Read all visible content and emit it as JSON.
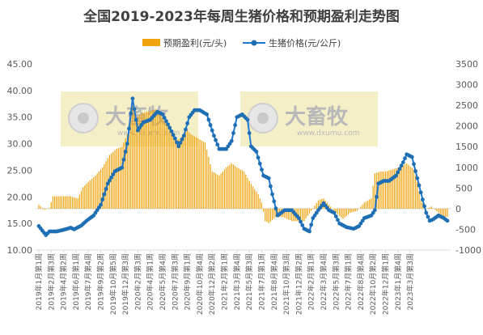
{
  "title": "全国2019-2023年每周生猪价格和预期盈利走势图",
  "watermark": {
    "brand": "大畜牧",
    "url": "www.dxumu.com"
  },
  "colors": {
    "bar": "#F0A30A",
    "line": "#1F77D4",
    "marker": "#1F6FB5",
    "watermark_box": "#F5EFC8",
    "axis": "#D9D9D9",
    "text": "#595959"
  },
  "chart_data": {
    "type": "bar+line",
    "title": "全国2019-2023年每周生猪价格和预期盈利走势图",
    "legend": {
      "position": "top",
      "items": [
        {
          "name": "预期盈利(元/头)",
          "type": "bar"
        },
        {
          "name": "生猪价格(元/公斤)",
          "type": "line"
        }
      ]
    },
    "y_left": {
      "min": 10,
      "max": 45,
      "step": 5,
      "ticks": [
        "10.00",
        "15.00",
        "20.00",
        "25.00",
        "30.00",
        "35.00",
        "40.00",
        "45.00"
      ]
    },
    "y_right": {
      "min": -1000,
      "max": 3500,
      "step": 500,
      "ticks": [
        "-1000",
        "-500",
        "0",
        "500",
        "1000",
        "1500",
        "2000",
        "2500",
        "3000",
        "3500"
      ]
    },
    "grid": false,
    "x_tick_labels": [
      "2019年1月第1周",
      "2019年2月第3周",
      "2019年4月第2周",
      "2019年6月第1周",
      "2019年7月第4周",
      "2019年9月第2周",
      "2019年10月第5周",
      "2019年12月第3周",
      "2020年2月第3周",
      "2020年4月第1周",
      "2020年5月第4周",
      "2020年7月第3周",
      "2020年9月第1周",
      "2020年10月第4周",
      "2020年12月第2周",
      "2021年2月第1周",
      "2021年3月第4周",
      "2021年5月第3周",
      "2021年7月第1周",
      "2021年8月第4周",
      "2021年10月第3周",
      "2021年12月第2周",
      "2022年2月第1周",
      "2022年3月第4周",
      "2022年5月第3周",
      "2022年7月第1周",
      "2022年8月第4周",
      "2022年10月第2周",
      "2022年12月第1周",
      "2023年1月第4周",
      "2023年3月第3周"
    ],
    "weeks_per_tick": 7,
    "series": [
      {
        "name": "生猪价格(元/公斤)",
        "axis": "left",
        "anchors": [
          [
            0,
            14.5
          ],
          [
            4,
            12.8
          ],
          [
            6,
            13.5
          ],
          [
            10,
            13.5
          ],
          [
            14,
            13.8
          ],
          [
            18,
            14.2
          ],
          [
            20,
            13.9
          ],
          [
            24,
            14.6
          ],
          [
            27,
            15.5
          ],
          [
            31,
            16.5
          ],
          [
            35,
            18.5
          ],
          [
            39,
            22.5
          ],
          [
            43,
            24.8
          ],
          [
            47,
            25.5
          ],
          [
            50,
            30.0
          ],
          [
            53,
            38.5
          ],
          [
            54,
            36.5
          ],
          [
            56,
            32.5
          ],
          [
            59,
            34.0
          ],
          [
            63,
            34.5
          ],
          [
            67,
            36.0
          ],
          [
            70,
            35.5
          ],
          [
            74,
            33.0
          ],
          [
            77,
            31.0
          ],
          [
            79,
            29.5
          ],
          [
            82,
            31.5
          ],
          [
            85,
            35.0
          ],
          [
            88,
            36.3
          ],
          [
            91,
            36.3
          ],
          [
            95,
            35.5
          ],
          [
            99,
            31.5
          ],
          [
            102,
            29.0
          ],
          [
            106,
            29.0
          ],
          [
            109,
            30.5
          ],
          [
            112,
            35.0
          ],
          [
            115,
            35.5
          ],
          [
            118,
            34.5
          ],
          [
            120,
            29.5
          ],
          [
            123,
            28.5
          ],
          [
            127,
            24.0
          ],
          [
            130,
            23.5
          ],
          [
            132,
            20.5
          ],
          [
            135,
            16.5
          ],
          [
            139,
            17.5
          ],
          [
            143,
            17.5
          ],
          [
            147,
            16.0
          ],
          [
            150,
            14.0
          ],
          [
            153,
            13.5
          ],
          [
            155,
            16.0
          ],
          [
            158,
            17.5
          ],
          [
            161,
            18.8
          ],
          [
            164,
            17.5
          ],
          [
            167,
            17.0
          ],
          [
            170,
            15.0
          ],
          [
            174,
            14.3
          ],
          [
            178,
            14.0
          ],
          [
            181,
            14.5
          ],
          [
            184,
            16.0
          ],
          [
            188,
            16.5
          ],
          [
            190,
            17.5
          ],
          [
            192,
            22.5
          ],
          [
            195,
            23.0
          ],
          [
            198,
            23.0
          ],
          [
            202,
            24.0
          ],
          [
            206,
            26.5
          ],
          [
            208,
            28.0
          ],
          [
            211,
            27.5
          ],
          [
            214,
            23.5
          ],
          [
            217,
            19.5
          ],
          [
            219,
            17.0
          ],
          [
            221,
            15.5
          ],
          [
            223,
            15.8
          ],
          [
            226,
            16.5
          ],
          [
            229,
            16.0
          ],
          [
            231,
            15.5
          ]
        ]
      },
      {
        "name": "预期盈利(元/头)",
        "axis": "right",
        "anchors": [
          [
            0,
            100
          ],
          [
            3,
            -30
          ],
          [
            6,
            20
          ],
          [
            8,
            300
          ],
          [
            14,
            300
          ],
          [
            18,
            300
          ],
          [
            22,
            250
          ],
          [
            25,
            520
          ],
          [
            28,
            650
          ],
          [
            32,
            800
          ],
          [
            36,
            1000
          ],
          [
            40,
            1300
          ],
          [
            44,
            1450
          ],
          [
            47,
            1500
          ],
          [
            50,
            1800
          ],
          [
            53,
            2500
          ],
          [
            55,
            2200
          ],
          [
            58,
            2300
          ],
          [
            62,
            2350
          ],
          [
            66,
            2400
          ],
          [
            70,
            2200
          ],
          [
            74,
            1950
          ],
          [
            78,
            1650
          ],
          [
            80,
            1700
          ],
          [
            84,
            1900
          ],
          [
            86,
            1800
          ],
          [
            90,
            1700
          ],
          [
            94,
            1600
          ],
          [
            98,
            900
          ],
          [
            102,
            800
          ],
          [
            106,
            1000
          ],
          [
            109,
            1100
          ],
          [
            112,
            1000
          ],
          [
            116,
            900
          ],
          [
            120,
            600
          ],
          [
            124,
            350
          ],
          [
            126,
            150
          ],
          [
            128,
            -300
          ],
          [
            130,
            -350
          ],
          [
            134,
            -200
          ],
          [
            138,
            -200
          ],
          [
            143,
            -300
          ],
          [
            147,
            -300
          ],
          [
            150,
            -300
          ],
          [
            154,
            -50
          ],
          [
            158,
            200
          ],
          [
            161,
            250
          ],
          [
            164,
            100
          ],
          [
            168,
            -100
          ],
          [
            172,
            -250
          ],
          [
            176,
            -100
          ],
          [
            180,
            -50
          ],
          [
            184,
            150
          ],
          [
            188,
            250
          ],
          [
            190,
            850
          ],
          [
            193,
            900
          ],
          [
            196,
            900
          ],
          [
            200,
            950
          ],
          [
            204,
            1000
          ],
          [
            208,
            1100
          ],
          [
            212,
            950
          ],
          [
            214,
            650
          ],
          [
            216,
            200
          ],
          [
            219,
            0
          ],
          [
            222,
            50
          ],
          [
            226,
            -100
          ],
          [
            229,
            -200
          ],
          [
            231,
            -200
          ]
        ]
      }
    ]
  }
}
